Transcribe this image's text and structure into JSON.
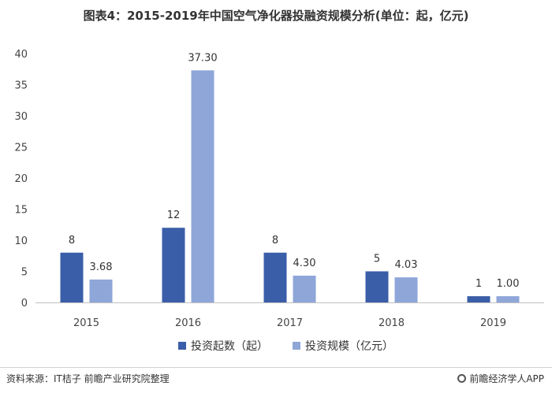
{
  "chart_data": {
    "type": "bar",
    "title": "图表4：2015-2019年中国空气净化器投融资规模分析(单位：起，亿元)",
    "categories": [
      "2015",
      "2016",
      "2017",
      "2018",
      "2019"
    ],
    "series": [
      {
        "name": "投资起数（起）",
        "values": [
          8,
          12,
          8,
          5,
          1
        ],
        "labels": [
          "8",
          "12",
          "8",
          "5",
          "1"
        ],
        "color": "#3a5ea8"
      },
      {
        "name": "投资规模（亿元）",
        "values": [
          3.68,
          37.3,
          4.3,
          4.03,
          1.0
        ],
        "labels": [
          "3.68",
          "37.30",
          "4.30",
          "4.03",
          "1.00"
        ],
        "color": "#8fa6d9"
      }
    ],
    "yticks": [
      "0",
      "5",
      "10",
      "15",
      "20",
      "25",
      "30",
      "35",
      "40"
    ],
    "ylim": [
      0,
      40
    ],
    "grid": false,
    "legend": "bottom"
  },
  "footer": {
    "source": "资料来源：IT桔子 前瞻产业研究院整理",
    "brand": "前瞻经济学人APP"
  }
}
